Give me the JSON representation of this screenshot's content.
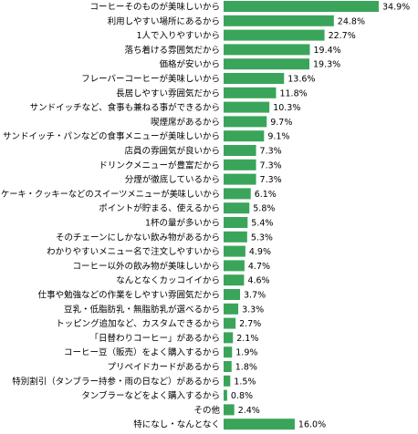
{
  "chart_data": {
    "type": "bar",
    "orientation": "horizontal",
    "value_suffix": "%",
    "bar_color": "#3aa55a",
    "xlim": [
      0,
      34.9
    ],
    "grid": false,
    "categories": [
      "コーヒーそのものが美味しいから",
      "利用しやすい場所にあるから",
      "1人で入りやすいから",
      "落ち着ける雰囲気だから",
      "価格が安いから",
      "フレーバーコーヒーが美味しいから",
      "長居しやすい雰囲気だから",
      "サンドイッチなど、食事も兼ねる事ができるから",
      "喫煙席があるから",
      "サンドイッチ・パンなどの食事メニューが美味しいから",
      "店員の雰囲気が良いから",
      "ドリンクメニューが豊富だから",
      "分煙が徹底しているから",
      "ケーキ・クッキーなどのスイーツメニューが美味しいから",
      "ポイントが貯まる、使えるから",
      "1杯の量が多いから",
      "そのチェーンにしかない飲み物があるから",
      "わかりやすいメニュー名で注文しやすいから",
      "コーヒー以外の飲み物が美味しいから",
      "なんとなくカッコイイから",
      "仕事や勉強などの作業をしやすい雰囲気だから",
      "豆乳・低脂肪乳・無脂肪乳が選べるから",
      "トッピング追加など、カスタムできるから",
      "「日替わりコーヒー」があるから",
      "コーヒー豆（販売）をよく購入するから",
      "プリペイドカードがあるから",
      "特別割引（タンブラー持参・雨の日など）があるから",
      "タンブラーなどをよく購入するから",
      "その他",
      "特になし・なんとなく"
    ],
    "values": [
      34.9,
      24.8,
      22.7,
      19.4,
      19.3,
      13.6,
      11.8,
      10.3,
      9.7,
      9.1,
      7.3,
      7.3,
      7.3,
      6.1,
      5.8,
      5.4,
      5.3,
      4.9,
      4.7,
      4.6,
      3.7,
      3.3,
      2.7,
      2.1,
      1.9,
      1.8,
      1.5,
      0.8,
      2.4,
      16.0
    ],
    "value_labels": [
      "34.9%",
      "24.8%",
      "22.7%",
      "19.4%",
      "19.3%",
      "13.6%",
      "11.8%",
      "10.3%",
      "9.7%",
      "9.1%",
      "7.3%",
      "7.3%",
      "7.3%",
      "6.1%",
      "5.8%",
      "5.4%",
      "5.3%",
      "4.9%",
      "4.7%",
      "4.6%",
      "3.7%",
      "3.3%",
      "2.7%",
      "2.1%",
      "1.9%",
      "1.8%",
      "1.5%",
      "0.8%",
      "2.4%",
      "16.0%"
    ]
  }
}
